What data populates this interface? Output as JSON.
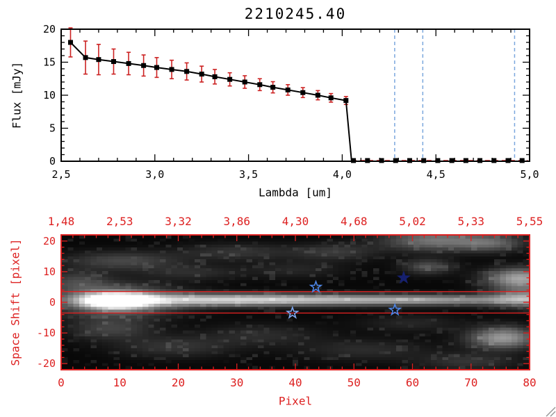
{
  "title": "2210245.40",
  "colors": {
    "background": "#ffffff",
    "axis_black": "#000000",
    "plot_red": "#dd2020",
    "error_red": "#cc2222",
    "vline_blue": "#7ba7dd"
  },
  "chart_data": [
    {
      "type": "line",
      "title": "2210245.40",
      "xlabel": "Lambda [um]",
      "ylabel": "Flux [mJy]",
      "xlim": [
        2.5,
        5.0
      ],
      "ylim": [
        0,
        20
      ],
      "grid": false,
      "xticks": {
        "values": [
          2.5,
          3.0,
          3.5,
          4.0,
          4.5,
          5.0
        ],
        "labels": [
          "2,5",
          "3,0",
          "3,5",
          "4,0",
          "4,5",
          "5,0"
        ],
        "minor_step": 0.1
      },
      "yticks": {
        "values": [
          0,
          5,
          10,
          15,
          20
        ],
        "labels": [
          "0",
          "5",
          "10",
          "15",
          "20"
        ],
        "minor_step": 1
      },
      "series": [
        {
          "name": "spectrum",
          "marker": "filled-square",
          "color": "#000000",
          "error_color": "#cc2222",
          "x": [
            2.55,
            2.63,
            2.7,
            2.78,
            2.86,
            2.94,
            3.01,
            3.09,
            3.17,
            3.25,
            3.32,
            3.4,
            3.48,
            3.56,
            3.63,
            3.71,
            3.79,
            3.87,
            3.94,
            4.02
          ],
          "y": [
            18.0,
            15.7,
            15.4,
            15.1,
            14.8,
            14.5,
            14.2,
            13.9,
            13.6,
            13.2,
            12.8,
            12.4,
            12.0,
            11.6,
            11.2,
            10.8,
            10.4,
            10.0,
            9.6,
            9.2
          ],
          "yerr": [
            2.2,
            2.5,
            2.3,
            1.9,
            1.7,
            1.6,
            1.5,
            1.4,
            1.3,
            1.2,
            1.1,
            1.0,
            0.95,
            0.9,
            0.85,
            0.8,
            0.75,
            0.7,
            0.65,
            0.6
          ]
        }
      ],
      "drop_x": 4.05,
      "zero_tail": {
        "y": 0,
        "x": [
          4.06,
          4.135,
          4.21,
          4.285,
          4.36,
          4.435,
          4.51,
          4.585,
          4.66,
          4.735,
          4.81,
          4.885,
          4.96
        ]
      },
      "vlines": {
        "x": [
          4.28,
          4.43,
          4.92
        ],
        "color": "#7ba7dd",
        "style": "dashed"
      },
      "zero_line": {
        "y": 0,
        "x_start": 4.05,
        "x_end": 4.99,
        "color": "#dd2020",
        "style": "dashed"
      }
    },
    {
      "type": "heatmap",
      "xlabel": "Pixel",
      "ylabel": "Space Shift [pixel]",
      "xlim": [
        0,
        80
      ],
      "ylim": [
        -22,
        22
      ],
      "frame_color": "#dd2020",
      "xticks": {
        "values": [
          0,
          10,
          20,
          30,
          40,
          50,
          60,
          70,
          80
        ],
        "labels": [
          "0",
          "10",
          "20",
          "30",
          "40",
          "50",
          "60",
          "70",
          "80"
        ],
        "minor_step": 2
      },
      "yticks": {
        "values": [
          -20,
          -10,
          0,
          10,
          20
        ],
        "labels": [
          "-20",
          "-10",
          "0",
          "10",
          "20"
        ],
        "minor_step": 2
      },
      "top_axis": {
        "positions": [
          0,
          10,
          20,
          30,
          40,
          50,
          60,
          70,
          80
        ],
        "labels": [
          "1,48",
          "2,53",
          "3,32",
          "3,86",
          "4,30",
          "4,68",
          "5,02",
          "5,33",
          "5,55"
        ]
      },
      "aperture_lines": {
        "y": [
          3.5,
          -3.5
        ],
        "color": "#dd2020"
      },
      "stars": [
        {
          "x": 43.5,
          "y": 5,
          "style": "open",
          "color": "#4d86e8"
        },
        {
          "x": 58.5,
          "y": 8,
          "style": "filled",
          "color": "#16206e"
        },
        {
          "x": 39.5,
          "y": -3.5,
          "style": "open",
          "color": "#7fa8f0"
        },
        {
          "x": 57,
          "y": -2.5,
          "style": "open",
          "color": "#4d86e8"
        }
      ],
      "noise_seed": 12,
      "blobs": [
        {
          "x": 9,
          "y": 0.5,
          "sx": 3.5,
          "sy": 1.6,
          "i": 1.3
        },
        {
          "x": 9,
          "y": 0.5,
          "sx": 7,
          "sy": 3.5,
          "i": 0.5
        },
        {
          "x": 25,
          "y": 0.8,
          "sx": 14,
          "sy": 1.5,
          "i": 0.5
        },
        {
          "x": 45,
          "y": 0.8,
          "sx": 20,
          "sy": 1.3,
          "i": 0.42
        },
        {
          "x": 66,
          "y": 0.8,
          "sx": 14,
          "sy": 1.2,
          "i": 0.3
        },
        {
          "x": 80,
          "y": 1.5,
          "sx": 4,
          "sy": 2.2,
          "i": 0.45
        },
        {
          "x": 79,
          "y": 8,
          "sx": 4,
          "sy": 2.4,
          "i": 0.6
        },
        {
          "x": 64,
          "y": 21,
          "sx": 6,
          "sy": 2.5,
          "i": 0.4
        },
        {
          "x": 74,
          "y": 20,
          "sx": 4,
          "sy": 2,
          "i": 0.3
        },
        {
          "x": 63,
          "y": 12,
          "sx": 3,
          "sy": 1.8,
          "i": 0.25
        },
        {
          "x": 76,
          "y": -12,
          "sx": 4,
          "sy": 2.5,
          "i": 0.55
        },
        {
          "x": 10,
          "y": 14,
          "sx": 7,
          "sy": 2.2,
          "i": 0.22
        },
        {
          "x": 2,
          "y": 7,
          "sx": 4,
          "sy": 2.5,
          "i": 0.2
        },
        {
          "x": 22,
          "y": 10,
          "sx": 6,
          "sy": 1.8,
          "i": 0.12
        },
        {
          "x": 30,
          "y": 17,
          "sx": 7,
          "sy": 2,
          "i": 0.15
        },
        {
          "x": 47,
          "y": 17,
          "sx": 5,
          "sy": 2,
          "i": 0.17
        },
        {
          "x": 40,
          "y": 11,
          "sx": 6,
          "sy": 2,
          "i": 0.1
        },
        {
          "x": 8,
          "y": -9,
          "sx": 5,
          "sy": 2.5,
          "i": 0.2
        },
        {
          "x": 19,
          "y": -15,
          "sx": 7,
          "sy": 2.5,
          "i": 0.15
        },
        {
          "x": 34,
          "y": -11,
          "sx": 7,
          "sy": 2.5,
          "i": 0.12
        },
        {
          "x": 52,
          "y": -16,
          "sx": 8,
          "sy": 2.5,
          "i": 0.12
        },
        {
          "x": 60,
          "y": -7,
          "sx": 6,
          "sy": 2,
          "i": 0.1
        },
        {
          "x": 70,
          "y": -20,
          "sx": 6,
          "sy": 2,
          "i": 0.15
        }
      ]
    }
  ]
}
